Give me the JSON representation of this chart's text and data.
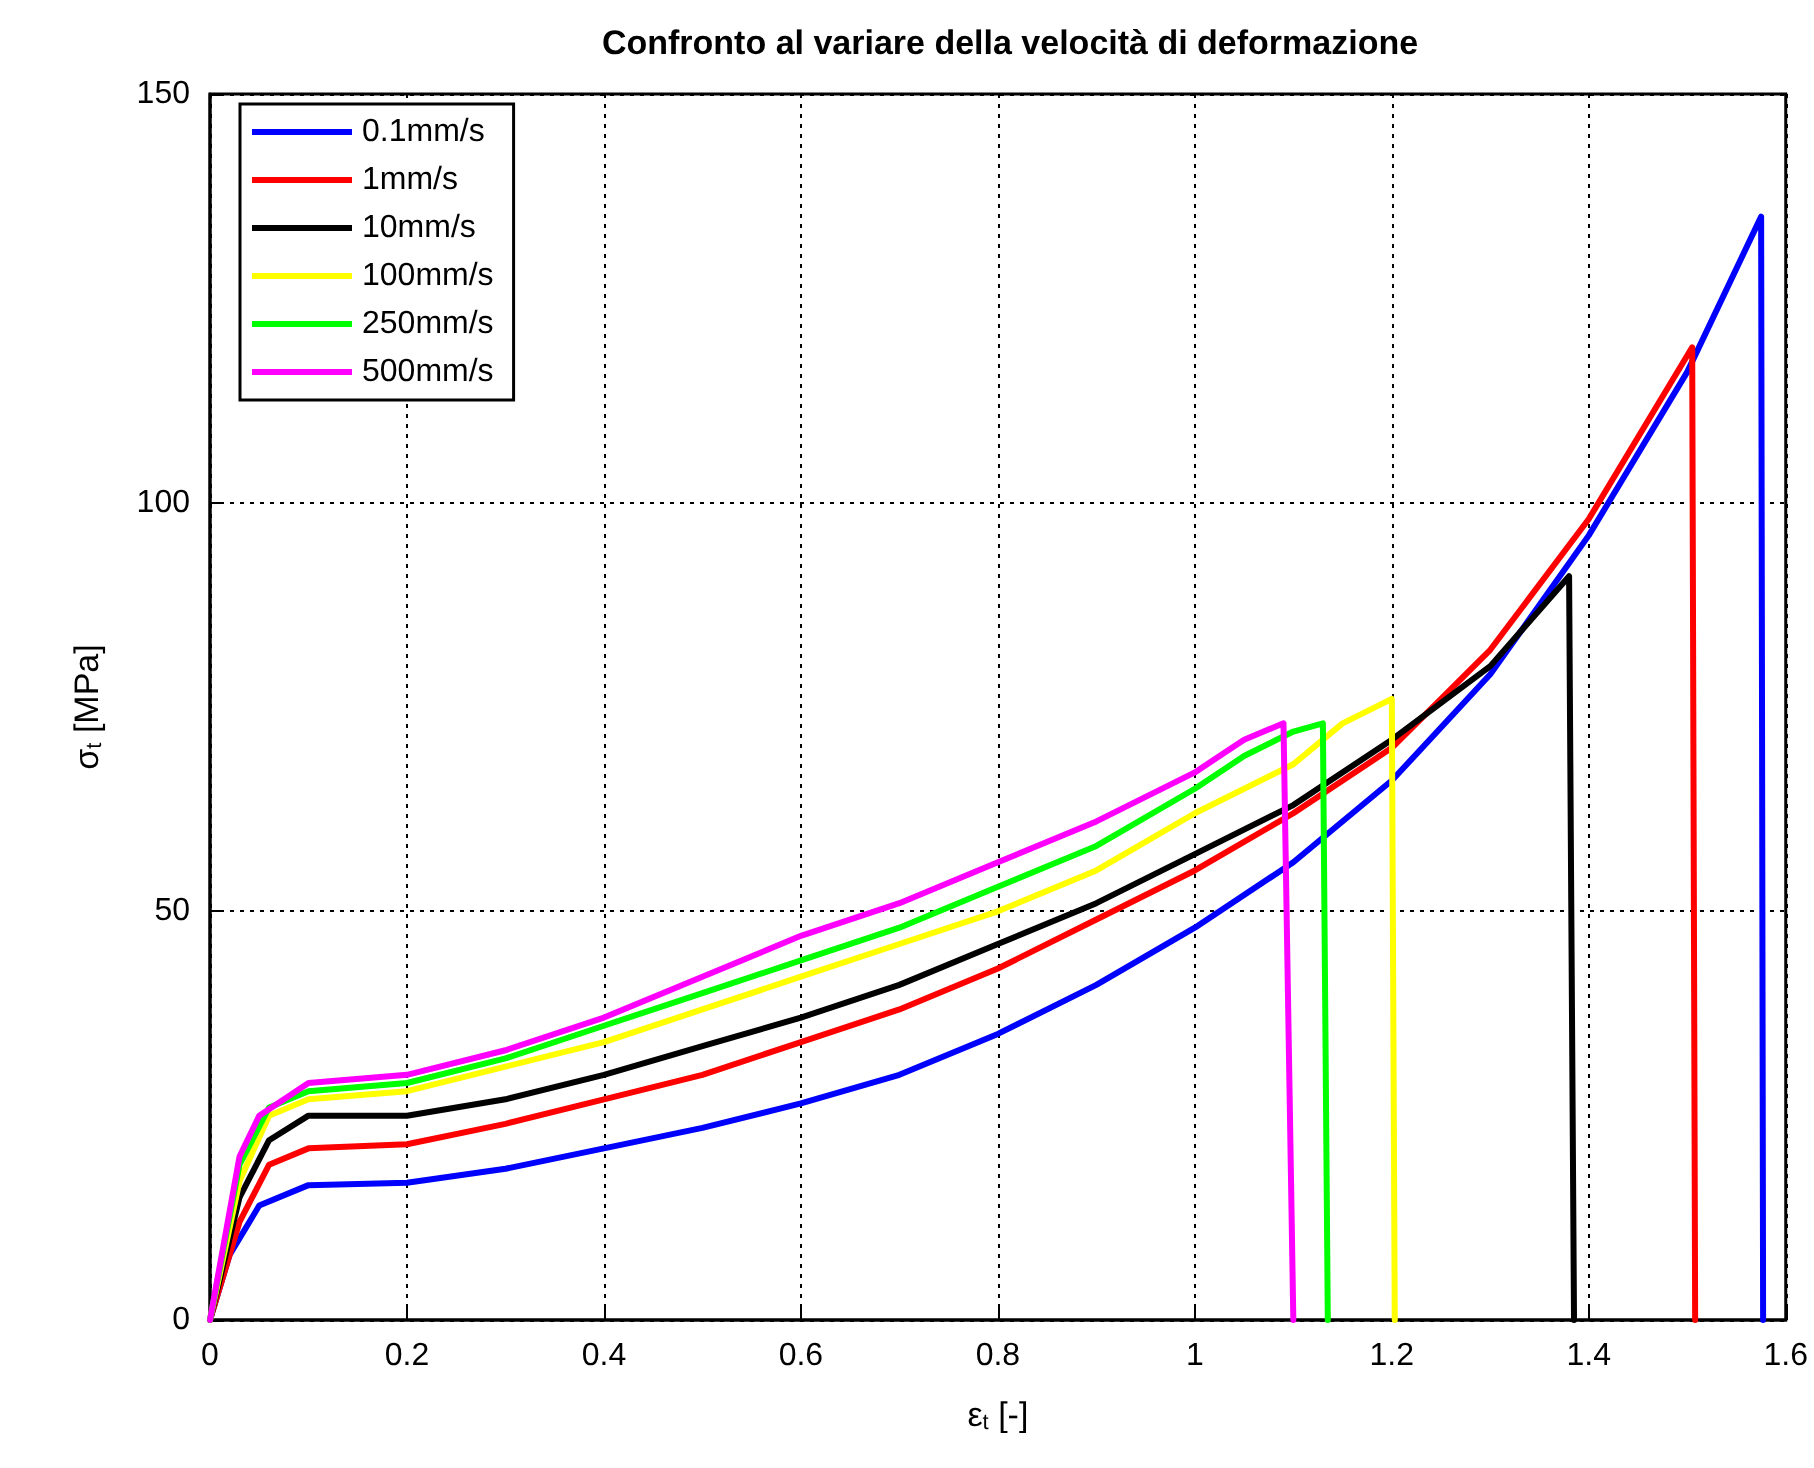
{
  "chart_data": {
    "type": "line",
    "title": "Confronto al variare della velocità di deformazione",
    "xlabel": "ε$_{t}$ [-]",
    "ylabel": "σ$_{t}$ [MPa]",
    "xlim": [
      0,
      1.6
    ],
    "xticks": [
      0,
      0.2,
      0.4,
      0.6,
      0.8,
      1,
      1.2,
      1.4,
      1.6
    ],
    "ylim": [
      0,
      150
    ],
    "yticks": [
      0,
      50,
      100,
      150
    ],
    "grid": true,
    "legend": "top left",
    "marker": "none",
    "line_style": "solid",
    "series": [
      {
        "name": "0.1mm/s",
        "color": "#0000ff",
        "x": [
          0,
          0.02,
          0.05,
          0.1,
          0.2,
          0.3,
          0.4,
          0.5,
          0.6,
          0.7,
          0.8,
          0.9,
          1.0,
          1.1,
          1.2,
          1.3,
          1.4,
          1.5,
          1.575,
          1.577
        ],
        "values": [
          0,
          8,
          14,
          16.5,
          16.8,
          18.5,
          21,
          23.5,
          26.5,
          30,
          35,
          41,
          48,
          56,
          66,
          79,
          96,
          116,
          135,
          0
        ]
      },
      {
        "name": "1mm/s",
        "color": "#ff0000",
        "x": [
          0,
          0.03,
          0.06,
          0.1,
          0.2,
          0.3,
          0.4,
          0.5,
          0.6,
          0.7,
          0.8,
          0.9,
          1.0,
          1.1,
          1.2,
          1.3,
          1.4,
          1.5,
          1.505,
          1.508
        ],
        "values": [
          0,
          12,
          19,
          21,
          21.5,
          24,
          27,
          30,
          34,
          38,
          43,
          49,
          55,
          62,
          70,
          82,
          98,
          118,
          119,
          0
        ]
      },
      {
        "name": "10mm/s",
        "color": "#000000",
        "x": [
          0,
          0.03,
          0.06,
          0.1,
          0.2,
          0.3,
          0.4,
          0.5,
          0.6,
          0.7,
          0.8,
          0.9,
          1.0,
          1.1,
          1.2,
          1.3,
          1.38,
          1.385
        ],
        "values": [
          0,
          15,
          22,
          25,
          25,
          27,
          30,
          33.5,
          37,
          41,
          46,
          51,
          57,
          63,
          71,
          80,
          91,
          0
        ]
      },
      {
        "name": "100mm/s",
        "color": "#ffff00",
        "x": [
          0,
          0.03,
          0.06,
          0.1,
          0.2,
          0.3,
          0.4,
          0.5,
          0.6,
          0.7,
          0.8,
          0.9,
          1.0,
          1.1,
          1.15,
          1.2,
          1.203
        ],
        "values": [
          0,
          17,
          25,
          27,
          28,
          31,
          34,
          38,
          42,
          46,
          50,
          55,
          62,
          68,
          73,
          76,
          0
        ]
      },
      {
        "name": "250mm/s",
        "color": "#00ff00",
        "x": [
          0,
          0.03,
          0.06,
          0.1,
          0.2,
          0.3,
          0.4,
          0.5,
          0.6,
          0.7,
          0.8,
          0.9,
          1.0,
          1.05,
          1.1,
          1.13,
          1.135
        ],
        "values": [
          0,
          19,
          26,
          28,
          29,
          32,
          36,
          40,
          44,
          48,
          53,
          58,
          65,
          69,
          72,
          73,
          0
        ]
      },
      {
        "name": "500mm/s",
        "color": "#ff00ff",
        "x": [
          0,
          0.03,
          0.05,
          0.1,
          0.2,
          0.3,
          0.4,
          0.5,
          0.6,
          0.7,
          0.8,
          0.9,
          1.0,
          1.05,
          1.09,
          1.1
        ],
        "values": [
          0,
          20,
          25,
          29,
          30,
          33,
          37,
          42,
          47,
          51,
          56,
          61,
          67,
          71,
          73,
          0
        ]
      }
    ]
  }
}
